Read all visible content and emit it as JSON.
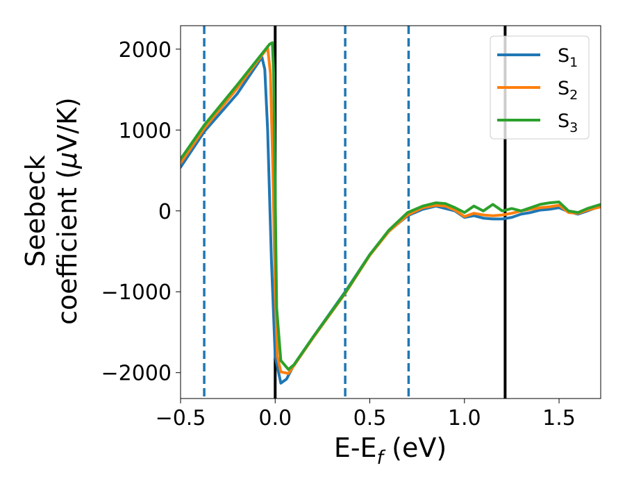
{
  "chart_data": {
    "type": "line",
    "xlabel": "E-E",
    "xlabel_subscript": "f",
    "xlabel_unit": " (eV)",
    "ylabel_line1": "Seebeck",
    "ylabel_line2_prefix": "coefficient  (",
    "ylabel_mu": "μ",
    "ylabel_line2_suffix": "V/K)",
    "xlim": [
      -0.5,
      1.72
    ],
    "ylim": [
      -2320,
      2290
    ],
    "xticks": [
      -0.5,
      0.0,
      0.5,
      1.0,
      1.5
    ],
    "xtick_labels": [
      "−0.5",
      "0.0",
      "0.5",
      "1.0",
      "1.5"
    ],
    "yticks": [
      -2000,
      -1000,
      0,
      1000,
      2000
    ],
    "ytick_labels": [
      "−2000",
      "−1000",
      "0",
      "1000",
      "2000"
    ],
    "grid": false,
    "legend_position": "upper right",
    "vlines": [
      {
        "x": -0.375,
        "style": "dashed",
        "color": "#1f77b4"
      },
      {
        "x": 0.0,
        "style": "solid",
        "color": "#000000"
      },
      {
        "x": 0.37,
        "style": "dashed",
        "color": "#1f77b4"
      },
      {
        "x": 0.705,
        "style": "dashed",
        "color": "#1f77b4"
      },
      {
        "x": 1.215,
        "style": "solid",
        "color": "#000000"
      }
    ],
    "series": [
      {
        "name": "S",
        "subscript": "1",
        "color": "#1f77b4",
        "x": [
          -0.5,
          -0.375,
          -0.2,
          -0.07,
          -0.055,
          -0.04,
          -0.02,
          0.0,
          0.03,
          0.06,
          0.1,
          0.2,
          0.37,
          0.5,
          0.6,
          0.7,
          0.78,
          0.85,
          0.9,
          0.95,
          1.0,
          1.05,
          1.1,
          1.15,
          1.2,
          1.25,
          1.3,
          1.35,
          1.4,
          1.45,
          1.5,
          1.55,
          1.6,
          1.65,
          1.72
        ],
        "y": [
          540,
          980,
          1450,
          1900,
          1750,
          1000,
          -600,
          -1800,
          -2130,
          -2080,
          -1900,
          -1560,
          -1000,
          -540,
          -250,
          -60,
          20,
          60,
          30,
          0,
          -80,
          -60,
          -90,
          -100,
          -100,
          -80,
          -40,
          -20,
          10,
          20,
          40,
          -10,
          -40,
          0,
          60
        ]
      },
      {
        "name": "S",
        "subscript": "2",
        "color": "#ff7f0e",
        "x": [
          -0.5,
          -0.375,
          -0.2,
          -0.04,
          -0.025,
          -0.012,
          0.0,
          0.012,
          0.03,
          0.07,
          0.1,
          0.2,
          0.37,
          0.5,
          0.6,
          0.7,
          0.78,
          0.85,
          0.9,
          0.95,
          1.0,
          1.05,
          1.1,
          1.15,
          1.2,
          1.25,
          1.3,
          1.35,
          1.4,
          1.45,
          1.5,
          1.55,
          1.6,
          1.65,
          1.72
        ],
        "y": [
          590,
          1020,
          1520,
          2020,
          1700,
          500,
          -1000,
          -1800,
          -1990,
          -2010,
          -1910,
          -1570,
          -1020,
          -550,
          -255,
          -50,
          40,
          70,
          60,
          10,
          -70,
          -30,
          -50,
          -60,
          -50,
          -30,
          0,
          20,
          40,
          50,
          70,
          -20,
          -30,
          10,
          50
        ]
      },
      {
        "name": "S",
        "subscript": "3",
        "color": "#2ca02c",
        "x": [
          -0.5,
          -0.375,
          -0.2,
          -0.03,
          -0.015,
          -0.008,
          0.0,
          0.008,
          0.03,
          0.07,
          0.1,
          0.2,
          0.37,
          0.5,
          0.6,
          0.7,
          0.78,
          0.85,
          0.9,
          0.95,
          1.0,
          1.05,
          1.1,
          1.15,
          1.2,
          1.25,
          1.3,
          1.35,
          1.4,
          1.45,
          1.5,
          1.55,
          1.6,
          1.65,
          1.72
        ],
        "y": [
          640,
          1060,
          1560,
          2060,
          2080,
          1700,
          200,
          -1200,
          -1850,
          -1960,
          -1900,
          -1560,
          -1010,
          -540,
          -240,
          -20,
          60,
          100,
          90,
          40,
          -20,
          60,
          0,
          80,
          0,
          30,
          0,
          40,
          80,
          100,
          110,
          0,
          -20,
          30,
          80
        ]
      }
    ]
  }
}
